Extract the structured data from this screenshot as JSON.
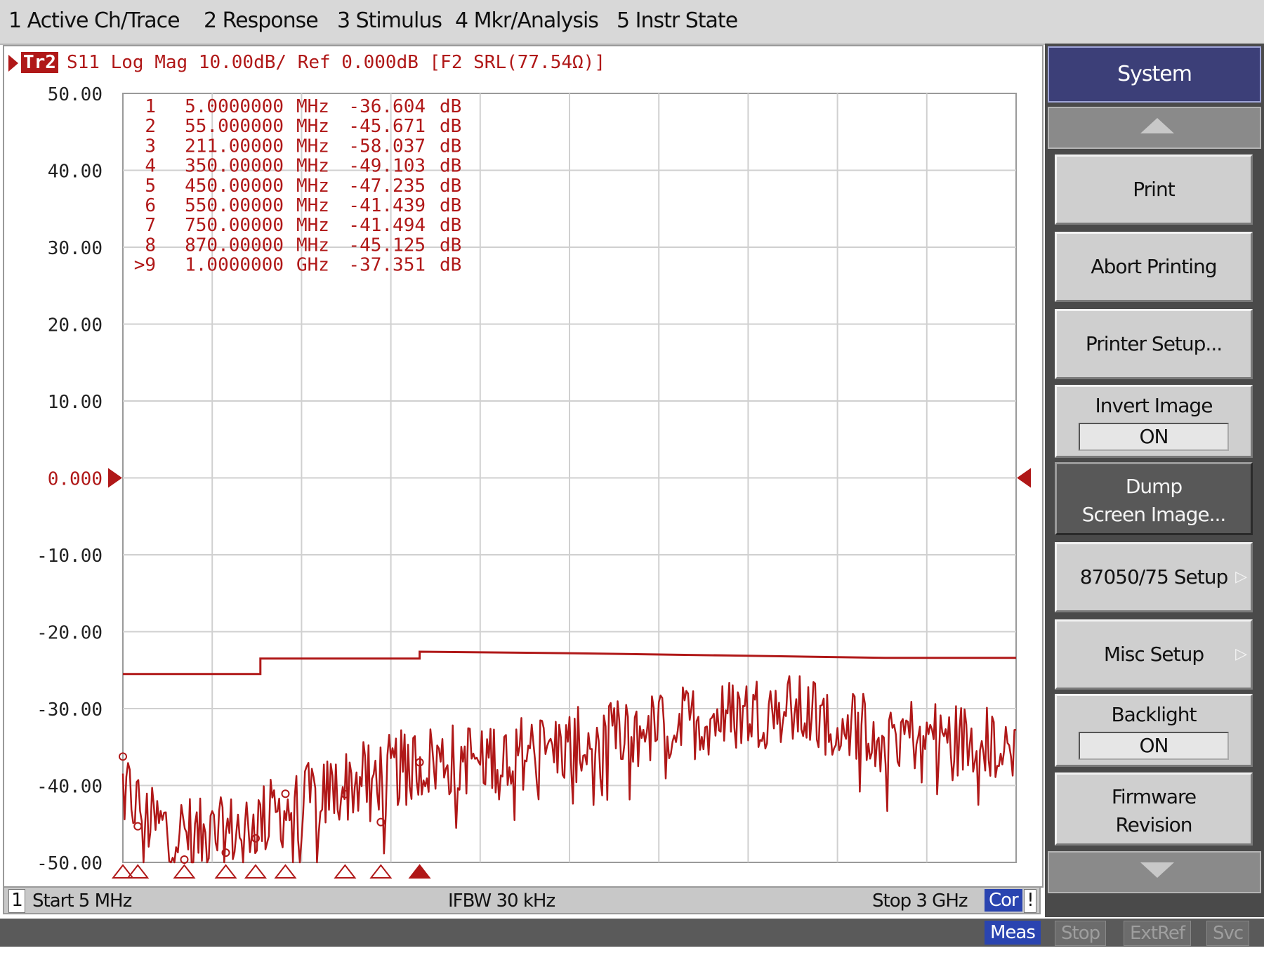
{
  "menu": {
    "items": [
      "1 Active Ch/Trace",
      "2 Response",
      "3 Stimulus",
      "4 Mkr/Analysis",
      "5 Instr State"
    ]
  },
  "trace": {
    "badge": "Tr2",
    "header": "S11 Log Mag 10.00dB/ Ref 0.000dB [F2 SRL(77.54Ω)]",
    "color": "#b01818"
  },
  "chart_data": {
    "type": "line",
    "ylabel": "",
    "xlabel": "",
    "ylim": [
      -50,
      50
    ],
    "xlim_mhz": [
      5,
      3000
    ],
    "y_ticks": [
      "50.00",
      "40.00",
      "30.00",
      "20.00",
      "10.00",
      "0.000",
      "-10.00",
      "-20.00",
      "-30.00",
      "-40.00",
      "-50.00"
    ],
    "reference_level_db": 0,
    "markers": [
      {
        "label": "1",
        "freq": "5.0000000",
        "unit": "MHz",
        "value": "-36.604",
        "vunit": "dB",
        "freq_mhz": 5,
        "db": -36.604
      },
      {
        "label": "2",
        "freq": "55.000000",
        "unit": "MHz",
        "value": "-45.671",
        "vunit": "dB",
        "freq_mhz": 55,
        "db": -45.671
      },
      {
        "label": "3",
        "freq": "211.00000",
        "unit": "MHz",
        "value": "-58.037",
        "vunit": "dB",
        "freq_mhz": 211,
        "db": -58.037
      },
      {
        "label": "4",
        "freq": "350.00000",
        "unit": "MHz",
        "value": "-49.103",
        "vunit": "dB",
        "freq_mhz": 350,
        "db": -49.103
      },
      {
        "label": "5",
        "freq": "450.00000",
        "unit": "MHz",
        "value": "-47.235",
        "vunit": "dB",
        "freq_mhz": 450,
        "db": -47.235
      },
      {
        "label": "6",
        "freq": "550.00000",
        "unit": "MHz",
        "value": "-41.439",
        "vunit": "dB",
        "freq_mhz": 550,
        "db": -41.439
      },
      {
        "label": "7",
        "freq": "750.00000",
        "unit": "MHz",
        "value": "-41.494",
        "vunit": "dB",
        "freq_mhz": 750,
        "db": -41.494
      },
      {
        "label": "8",
        "freq": "870.00000",
        "unit": "MHz",
        "value": "-45.125",
        "vunit": "dB",
        "freq_mhz": 870,
        "db": -45.125
      },
      {
        "label": ">9",
        "freq": "1.0000000",
        "unit": "GHz",
        "value": "-37.351",
        "vunit": "dB",
        "freq_mhz": 1000,
        "db": -37.351
      }
    ],
    "limit_line": [
      {
        "x_mhz": 5,
        "db": -25.5
      },
      {
        "x_mhz": 466,
        "db": -25.5
      },
      {
        "x_mhz": 466,
        "db": -23.5
      },
      {
        "x_mhz": 1000,
        "db": -23.5
      },
      {
        "x_mhz": 1000,
        "db": -22.6
      },
      {
        "x_mhz": 1520,
        "db": -22.8
      },
      {
        "x_mhz": 2040,
        "db": -23.1
      },
      {
        "x_mhz": 2560,
        "db": -23.4
      },
      {
        "x_mhz": 3000,
        "db": -23.4
      }
    ],
    "trace_envelope": [
      {
        "x_mhz": 5,
        "db": -40
      },
      {
        "x_mhz": 100,
        "db": -45
      },
      {
        "x_mhz": 300,
        "db": -47
      },
      {
        "x_mhz": 500,
        "db": -44
      },
      {
        "x_mhz": 750,
        "db": -40
      },
      {
        "x_mhz": 1000,
        "db": -37
      },
      {
        "x_mhz": 1500,
        "db": -35
      },
      {
        "x_mhz": 2000,
        "db": -31
      },
      {
        "x_mhz": 2200,
        "db": -30
      },
      {
        "x_mhz": 2600,
        "db": -33
      },
      {
        "x_mhz": 3000,
        "db": -35
      }
    ]
  },
  "status": {
    "channel": "1",
    "start": "Start 5 MHz",
    "ifbw": "IFBW 30 kHz",
    "stop": "Stop 3 GHz",
    "cor": "Cor",
    "flag": "!"
  },
  "instr_state": {
    "meas": "Meas",
    "stop": "Stop",
    "extref": "ExtRef",
    "svc": "Svc"
  },
  "softkeys": {
    "title": "System",
    "print": "Print",
    "abort_printing": "Abort Printing",
    "printer_setup": "Printer Setup...",
    "invert_image": "Invert Image",
    "invert_image_value": "ON",
    "dump_line1": "Dump",
    "dump_line2": "Screen Image...",
    "setup_8705": "87050/75 Setup",
    "misc_setup": "Misc Setup",
    "backlight": "Backlight",
    "backlight_value": "ON",
    "firmware_line1": "Firmware",
    "firmware_line2": "Revision",
    "submenu_arrow": "▷"
  }
}
